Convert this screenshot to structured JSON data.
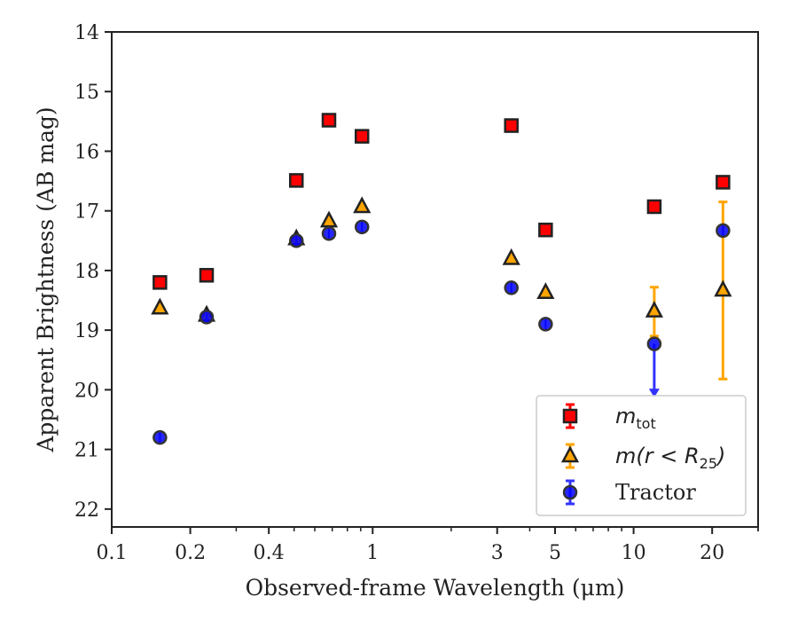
{
  "chart_data": {
    "type": "scatter",
    "xlabel": "Observed-frame Wavelength (μm)",
    "ylabel": "Apparent Brightness (AB mag)",
    "xscale": "log",
    "xlim": [
      0.1,
      30
    ],
    "ylim": [
      22.3,
      14
    ],
    "y_inverted": true,
    "x_ticks": [
      0.1,
      0.2,
      0.4,
      1,
      3,
      5,
      10,
      20
    ],
    "x_tick_labels": [
      "0.1",
      "0.2",
      "0.4",
      "1",
      "3",
      "5",
      "10",
      "20"
    ],
    "y_ticks": [
      14,
      15,
      16,
      17,
      18,
      19,
      20,
      21,
      22
    ],
    "y_tick_labels": [
      "14",
      "15",
      "16",
      "17",
      "18",
      "19",
      "20",
      "21",
      "22"
    ],
    "legend_position": "lower right",
    "grid": false,
    "series": [
      {
        "name": "m_tot",
        "legend": {
          "main": "m",
          "sub": "tot",
          "rest": ""
        },
        "marker": "square",
        "color": "#ff0000",
        "errcolor": "#ff0000",
        "points": [
          {
            "x": 0.153,
            "y": 18.2
          },
          {
            "x": 0.231,
            "y": 18.08
          },
          {
            "x": 0.51,
            "y": 16.49
          },
          {
            "x": 0.68,
            "y": 15.48
          },
          {
            "x": 0.91,
            "y": 15.75
          },
          {
            "x": 3.4,
            "y": 15.57
          },
          {
            "x": 4.6,
            "y": 17.32
          },
          {
            "x": 12.0,
            "y": 16.93
          },
          {
            "x": 22.0,
            "y": 16.52
          }
        ]
      },
      {
        "name": "m(r < R_25)",
        "legend": {
          "main": "m(r < R",
          "sub": "25",
          "rest": ")"
        },
        "marker": "triangle",
        "color": "#ffa500",
        "errcolor": "#ffa500",
        "points": [
          {
            "x": 0.153,
            "y": 18.63
          },
          {
            "x": 0.231,
            "y": 18.75
          },
          {
            "x": 0.51,
            "y": 17.47
          },
          {
            "x": 0.68,
            "y": 17.17
          },
          {
            "x": 0.91,
            "y": 16.93
          },
          {
            "x": 3.4,
            "y": 17.8
          },
          {
            "x": 4.6,
            "y": 18.37
          },
          {
            "x": 12.0,
            "y": 18.68,
            "err_low": 19.1,
            "err_high": 18.28
          },
          {
            "x": 22.0,
            "y": 18.33,
            "err_low": 19.82,
            "err_high": 16.85
          }
        ]
      },
      {
        "name": "Tractor",
        "legend": {
          "main": "Tractor",
          "sub": "",
          "rest": ""
        },
        "marker": "circle",
        "color": "#0000ff",
        "errcolor": "#3333ff",
        "points": [
          {
            "x": 0.153,
            "y": 20.8
          },
          {
            "x": 0.231,
            "y": 18.78
          },
          {
            "x": 0.51,
            "y": 17.5
          },
          {
            "x": 0.68,
            "y": 17.38
          },
          {
            "x": 0.91,
            "y": 17.27
          },
          {
            "x": 3.4,
            "y": 18.29
          },
          {
            "x": 4.6,
            "y": 18.9
          },
          {
            "x": 12.0,
            "y": 19.23,
            "upper_limit": true,
            "arrow_to": 20.1
          },
          {
            "x": 22.0,
            "y": 17.33
          }
        ]
      }
    ]
  }
}
